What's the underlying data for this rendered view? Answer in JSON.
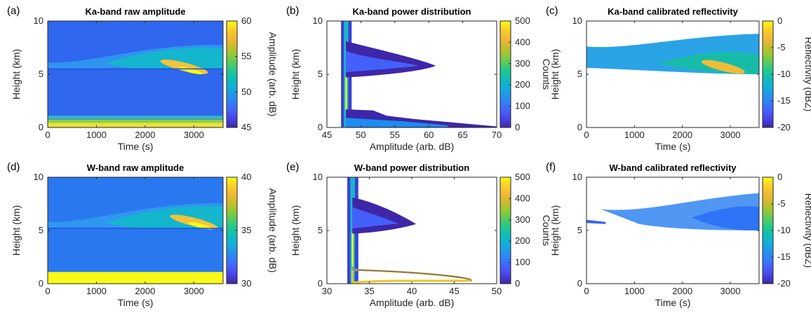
{
  "colormap": [
    "#3e26a8",
    "#4742e2",
    "#4460fb",
    "#347cfd",
    "#2198ea",
    "#10b0d9",
    "#0dbfb5",
    "#24c88a",
    "#5ccb5b",
    "#9bc732",
    "#d0bb2a",
    "#f5b838",
    "#f8d224",
    "#f9fb15"
  ],
  "fill_colors": {
    "cloud_core": "#ffc832",
    "cloud_mid": "#3fb6c9",
    "background": "#2f67ee",
    "noise_stripe": "#c9e34a",
    "white": "#ffffff"
  },
  "chart_data": [
    {
      "panel": "(a)",
      "type": "heatmap",
      "title": "Ka-band raw amplitude",
      "xlabel": "Time (s)",
      "ylabel": "Height (km)",
      "xlim": [
        0,
        3600
      ],
      "ylim": [
        0,
        10
      ],
      "xticks": [
        "0",
        "1000",
        "2000",
        "3000"
      ],
      "yticks": [
        "0",
        "5",
        "10"
      ],
      "colorbar": {
        "label": "Amplitude (arb. dB)",
        "range": [
          45,
          60
        ],
        "ticks": [
          "45",
          "50",
          "55",
          "60"
        ]
      },
      "features": {
        "cloud_base_km": 5.5,
        "cloud_top_km": 8.0,
        "peak_time_s": 2800,
        "peak_height_km": 5.7,
        "noise_band_km": [
          0,
          1.1
        ]
      }
    },
    {
      "panel": "(b)",
      "type": "heatmap",
      "title": "Ka-band power distribution",
      "xlabel": "Amplitude (arb. dB)",
      "ylabel": "Height (km)",
      "xlim": [
        45,
        70
      ],
      "ylim": [
        0,
        10
      ],
      "xticks": [
        "45",
        "50",
        "55",
        "60",
        "65",
        "70"
      ],
      "yticks": [
        "0",
        "5",
        "10"
      ],
      "colorbar": {
        "label": "Counts",
        "range": [
          0,
          500
        ],
        "ticks": [
          "0",
          "100",
          "200",
          "300",
          "400",
          "500"
        ]
      },
      "features": {
        "noise_floor": 47.8,
        "cloud_tail_max": 61,
        "cloud_peak_height_km": 5.8,
        "surface_tail_max": 70
      }
    },
    {
      "panel": "(c)",
      "type": "heatmap",
      "title": "Ka-band calibrated reflectivity",
      "xlabel": "Time (s)",
      "ylabel": "Height (km)",
      "xlim": [
        0,
        3600
      ],
      "ylim": [
        0,
        10
      ],
      "xticks": [
        "0",
        "1000",
        "2000",
        "3000"
      ],
      "yticks": [
        "0",
        "5",
        "10"
      ],
      "colorbar": {
        "label": "Reflectivity (dBZ)",
        "range": [
          -20,
          0
        ],
        "ticks": [
          "0",
          "-5",
          "-10",
          "-15",
          "-20"
        ]
      },
      "features": {
        "cloud_base_km": 5.0,
        "cloud_top_km": 8.8
      }
    },
    {
      "panel": "(d)",
      "type": "heatmap",
      "title": "W-band raw amplitude",
      "xlabel": "Time (s)",
      "ylabel": "Height (km)",
      "xlim": [
        0,
        3600
      ],
      "ylim": [
        0,
        10
      ],
      "xticks": [
        "0",
        "1000",
        "2000",
        "3000"
      ],
      "yticks": [
        "0",
        "5",
        "10"
      ],
      "colorbar": {
        "label": "Amplitude (arb. dB)",
        "range": [
          30,
          40
        ],
        "ticks": [
          "30",
          "35",
          "40"
        ]
      },
      "features": {
        "cloud_base_km": 5.2,
        "cloud_top_km": 7.8,
        "peak_time_s": 3000,
        "peak_height_km": 5.8,
        "saturated_band_km": [
          0,
          1.1
        ]
      }
    },
    {
      "panel": "(e)",
      "type": "heatmap",
      "title": "W-band power distribution",
      "xlabel": "Amplitude (arb. dB)",
      "ylabel": "Height (km)",
      "xlim": [
        30,
        50
      ],
      "ylim": [
        0,
        10
      ],
      "xticks": [
        "30",
        "35",
        "40",
        "45",
        "50"
      ],
      "yticks": [
        "0",
        "5",
        "10"
      ],
      "colorbar": {
        "label": "Counts",
        "range": [
          0,
          500
        ],
        "ticks": [
          "0",
          "100",
          "200",
          "300",
          "400",
          "500"
        ]
      },
      "features": {
        "noise_floor": 33,
        "cloud_tail_max": 40.5,
        "cloud_peak_height_km": 5.6,
        "surface_tail_max": 47
      }
    },
    {
      "panel": "(f)",
      "type": "heatmap",
      "title": "W-band calibrated reflectivity",
      "xlabel": "Time (s)",
      "ylabel": "Height (km)",
      "xlim": [
        0,
        3600
      ],
      "ylim": [
        0,
        10
      ],
      "xticks": [
        "0",
        "1000",
        "2000",
        "3000"
      ],
      "yticks": [
        "0",
        "5",
        "10"
      ],
      "colorbar": {
        "label": "Reflectivity (dBZ)",
        "range": [
          -20,
          0
        ],
        "ticks": [
          "0",
          "-5",
          "-10",
          "-15",
          "-20"
        ]
      },
      "features": {
        "cloud_base_km": 5.0,
        "cloud_top_km": 8.5
      }
    }
  ]
}
